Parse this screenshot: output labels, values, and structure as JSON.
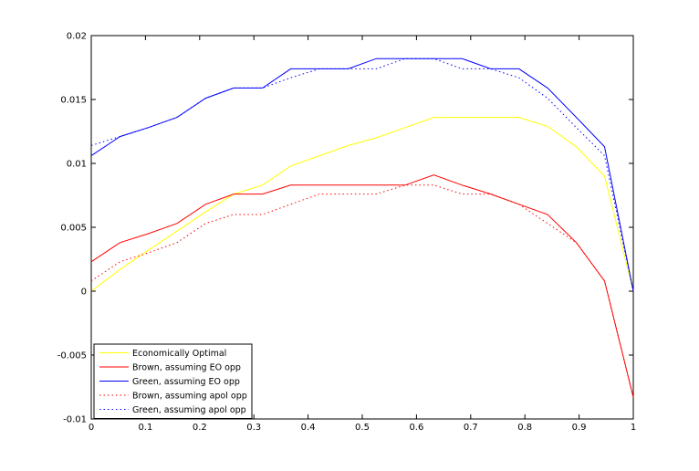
{
  "chart_data": {
    "type": "line",
    "title": "",
    "xlabel": "",
    "ylabel": "",
    "xlim": [
      0,
      1
    ],
    "ylim": [
      -0.01,
      0.02
    ],
    "x_ticks": [
      0,
      0.1,
      0.2,
      0.3,
      0.4,
      0.5,
      0.6,
      0.7,
      0.8,
      0.9,
      1
    ],
    "x_tick_labels": [
      "0",
      "0.1",
      "0.2",
      "0.3",
      "0.4",
      "0.5",
      "0.6",
      "0.7",
      "0.8",
      "0.9",
      "1"
    ],
    "y_ticks": [
      -0.01,
      -0.005,
      0,
      0.005,
      0.01,
      0.015,
      0.02
    ],
    "y_tick_labels": [
      "-0.01",
      "-0.005",
      "0",
      "0.005",
      "0.01",
      "0.015",
      "0.02"
    ],
    "grid": false,
    "legend_position": "bottom-left",
    "series": [
      {
        "name": "Economically Optimal",
        "color": "#ffff00",
        "style": "solid",
        "x": [
          0,
          0.053,
          0.105,
          0.158,
          0.211,
          0.263,
          0.316,
          0.368,
          0.421,
          0.474,
          0.526,
          0.579,
          0.632,
          0.684,
          0.737,
          0.789,
          0.842,
          0.895,
          0.947,
          1
        ],
        "y": [
          0,
          0.0017,
          0.0032,
          0.0047,
          0.0062,
          0.0076,
          0.0083,
          0.0098,
          0.0106,
          0.0114,
          0.012,
          0.0128,
          0.0136,
          0.0136,
          0.0136,
          0.0136,
          0.0129,
          0.0113,
          0.009,
          0
        ]
      },
      {
        "name": "Brown, assuming EO opp",
        "color": "#ff0000",
        "style": "solid",
        "x": [
          0,
          0.053,
          0.105,
          0.158,
          0.211,
          0.263,
          0.316,
          0.368,
          0.421,
          0.474,
          0.526,
          0.579,
          0.632,
          0.684,
          0.737,
          0.789,
          0.842,
          0.895,
          0.947,
          1
        ],
        "y": [
          0.0023,
          0.0038,
          0.0045,
          0.0053,
          0.0068,
          0.0076,
          0.0076,
          0.0083,
          0.0083,
          0.0083,
          0.0083,
          0.0083,
          0.0091,
          0.0083,
          0.0076,
          0.0068,
          0.006,
          0.0038,
          0.0008,
          -0.0083
        ]
      },
      {
        "name": "Green, assuming EO opp",
        "color": "#0000ff",
        "style": "solid",
        "x": [
          0,
          0.053,
          0.105,
          0.158,
          0.211,
          0.263,
          0.316,
          0.368,
          0.421,
          0.474,
          0.526,
          0.579,
          0.632,
          0.684,
          0.737,
          0.789,
          0.842,
          0.895,
          0.947,
          1
        ],
        "y": [
          0.0106,
          0.0121,
          0.0128,
          0.0136,
          0.0151,
          0.0159,
          0.0159,
          0.0174,
          0.0174,
          0.0174,
          0.0182,
          0.0182,
          0.0182,
          0.0182,
          0.0174,
          0.0174,
          0.0159,
          0.0136,
          0.0113,
          0
        ]
      },
      {
        "name": "Brown, assuming apol opp",
        "color": "#ff0000",
        "style": "dotted",
        "x": [
          0,
          0.053,
          0.105,
          0.158,
          0.211,
          0.263,
          0.316,
          0.368,
          0.421,
          0.474,
          0.526,
          0.579,
          0.632,
          0.684,
          0.737,
          0.789,
          0.842,
          0.895,
          0.947,
          1
        ],
        "y": [
          0.0008,
          0.0023,
          0.003,
          0.0038,
          0.0053,
          0.006,
          0.006,
          0.0068,
          0.0076,
          0.0076,
          0.0076,
          0.0083,
          0.0083,
          0.0076,
          0.0076,
          0.0068,
          0.0053,
          0.0038,
          0.0008,
          -0.0083
        ]
      },
      {
        "name": "Green, assuming apol opp",
        "color": "#0000ff",
        "style": "dotted",
        "x": [
          0,
          0.053,
          0.105,
          0.158,
          0.211,
          0.263,
          0.316,
          0.368,
          0.421,
          0.474,
          0.526,
          0.579,
          0.632,
          0.684,
          0.737,
          0.789,
          0.842,
          0.895,
          0.947,
          1
        ],
        "y": [
          0.0114,
          0.0121,
          0.0128,
          0.0136,
          0.0151,
          0.0159,
          0.0159,
          0.0167,
          0.0174,
          0.0174,
          0.0174,
          0.0182,
          0.0182,
          0.0174,
          0.0174,
          0.0167,
          0.0151,
          0.0128,
          0.0106,
          0
        ]
      }
    ]
  }
}
